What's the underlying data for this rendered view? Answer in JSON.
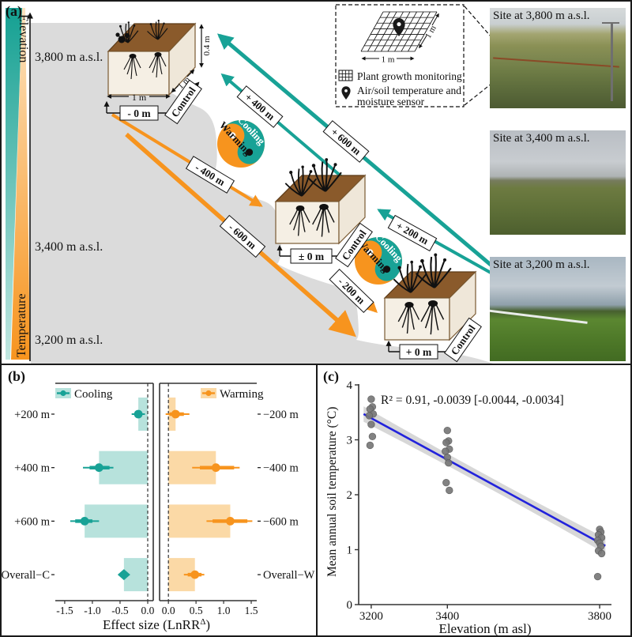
{
  "colors": {
    "cooling": "#18A296",
    "cooling_light": "#B7E2DC",
    "warming": "#F7941E",
    "warming_light": "#FBD9A6",
    "mountain": "#DBDBDB",
    "box_top": "#8A5A2B",
    "box_face": "#F5EFE4",
    "regression_blue": "#2323DC",
    "band_gray": "#C9C9C9",
    "point_gray": "#787878"
  },
  "panel_a": {
    "label": "(a)",
    "elevation_bar_label": "Elevation",
    "temperature_bar_label": "Temperature",
    "elevations": {
      "high": "3,800 m a.s.l.",
      "mid": "3,400 m a.s.l.",
      "low": "3,200 m a.s.l."
    },
    "control_label": "Control",
    "offsets": {
      "high": "- 0 m",
      "mid": "± 0 m",
      "low": "+ 0 m"
    },
    "dims": {
      "width": "1 m",
      "depth": "1 m",
      "height": "0.4 m"
    },
    "cooling_arrow_labels": {
      "a200": "+ 200 m",
      "a400": "+ 400 m",
      "a600": "+ 600 m"
    },
    "warming_arrow_labels": {
      "a200": "- 200 m",
      "a400": "- 400 m",
      "a600": "- 600 m"
    },
    "yinyang": {
      "cooling": "Cooling",
      "warming": "Warming"
    },
    "legend": {
      "dim_bottom": "1 m",
      "dim_side": "1 m",
      "item1": "Plant growth monitoring",
      "item2_line1": "Air/soil temperature and",
      "item2_line2": "moisture sensor"
    },
    "photos": [
      {
        "caption": "Site at 3,800 m a.s.l."
      },
      {
        "caption": "Site at 3,400 m a.s.l."
      },
      {
        "caption": "Site at 3,200 m a.s.l."
      }
    ]
  },
  "chart_data": [
    {
      "id": "effect_size_forest",
      "type": "bar",
      "panel_label": "(b)",
      "xlabel_prefix": "Effect size (LnRR",
      "xlabel_sup": "Δ",
      "xlabel_suffix": ")",
      "legend_position": "top-inside",
      "grid": false,
      "panels": [
        {
          "name": "Cooling",
          "side": "left",
          "xlim": [
            -1.67,
            0.1
          ],
          "ticks": [
            -1.5,
            -1.0,
            -0.5,
            0.0
          ],
          "zero_line": 0,
          "rows": [
            {
              "label": "+200 m",
              "mean": -0.17,
              "ci": [
                -0.29,
                -0.05
              ],
              "inner": [
                -0.23,
                -0.11
              ],
              "shape": "circle"
            },
            {
              "label": "+400 m",
              "mean": -0.88,
              "ci": [
                -1.17,
                -0.62
              ],
              "inner": [
                -1.05,
                -0.69
              ],
              "shape": "circle"
            },
            {
              "label": "+600 m",
              "mean": -1.14,
              "ci": [
                -1.4,
                -0.88
              ],
              "inner": [
                -1.31,
                -1.0
              ],
              "shape": "circle"
            },
            {
              "label": "Overall−C",
              "mean": -0.43,
              "ci": [
                -0.52,
                -0.34
              ],
              "inner": [
                -0.5,
                -0.36
              ],
              "shape": "diamond"
            }
          ]
        },
        {
          "name": "Warming",
          "side": "right",
          "xlim": [
            -0.16,
            1.6
          ],
          "ticks": [
            0.0,
            0.5,
            1.0,
            1.5
          ],
          "zero_line": 0,
          "rows": [
            {
              "label": "−200 m",
              "mean": 0.13,
              "ci": [
                -0.05,
                0.38
              ],
              "inner": [
                0.02,
                0.28
              ],
              "shape": "circle"
            },
            {
              "label": "−400 m",
              "mean": 0.86,
              "ci": [
                0.43,
                1.29
              ],
              "inner": [
                0.57,
                1.19
              ],
              "shape": "circle"
            },
            {
              "label": "−600 m",
              "mean": 1.12,
              "ci": [
                0.69,
                1.52
              ],
              "inner": [
                0.8,
                1.43
              ],
              "shape": "circle"
            },
            {
              "label": "Overall−W",
              "mean": 0.48,
              "ci": [
                0.28,
                0.65
              ],
              "inner": [
                0.35,
                0.6
              ],
              "shape": "circle"
            }
          ]
        }
      ]
    },
    {
      "id": "soil_temp_vs_elevation",
      "type": "scatter",
      "panel_label": "(c)",
      "annotation": "R² = 0.91,  -0.0039 [-0.0044, -0.0034]",
      "xlabel": "Elevation (m asl)",
      "ylabel": "Mean annual soil temperature (°C)",
      "xlim": [
        3167,
        3831
      ],
      "ylim": [
        0,
        4
      ],
      "xticks": [
        3200,
        3400,
        3800
      ],
      "yticks": [
        0,
        1,
        2,
        3,
        4
      ],
      "grid": false,
      "series": [
        {
          "x": 3200,
          "y": [
            3.74,
            3.6,
            3.56,
            3.47,
            3.44,
            3.28,
            3.06,
            2.9
          ]
        },
        {
          "x": 3400,
          "y": [
            3.17,
            2.98,
            2.95,
            2.83,
            2.79,
            2.68,
            2.58,
            2.22,
            2.08
          ]
        },
        {
          "x": 3800,
          "y": [
            1.37,
            1.32,
            1.27,
            1.22,
            1.17,
            1.12,
            1.06,
            0.98,
            0.93,
            0.51
          ]
        }
      ],
      "regression": {
        "x1": 3180,
        "y1": 3.47,
        "x2": 3815,
        "y2": 1.07,
        "r2": 0.91,
        "slope": -0.0039,
        "slope_ci": [
          -0.0044,
          -0.0034
        ],
        "band_halfwidth_end": 0.14,
        "band_halfwidth_mid": 0.07
      }
    }
  ]
}
